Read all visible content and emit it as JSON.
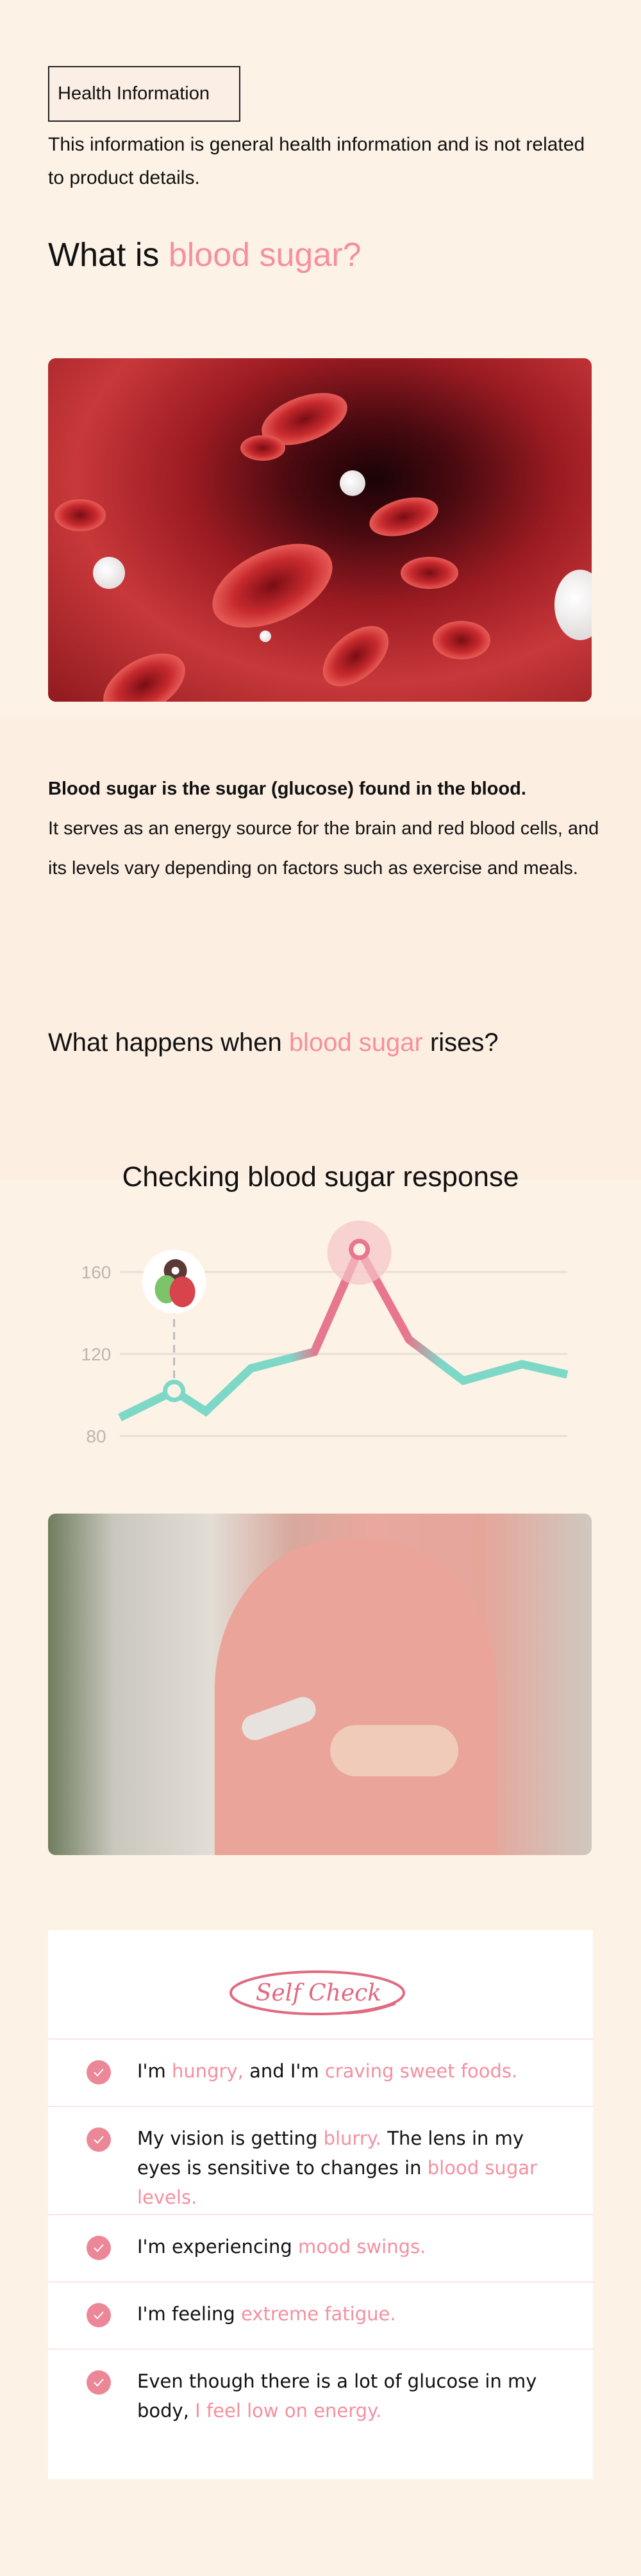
{
  "badge": "Health Information",
  "note": "This information is general health information and is not related to product details.",
  "heading1": {
    "pre": "What is ",
    "highlight": "blood sugar?"
  },
  "intro": {
    "bold": "Blood sugar is the sugar (glucose) found in the blood.",
    "body": "It serves as an energy source for the brain and red blood cells, and its levels vary depending on factors such as exercise and meals."
  },
  "heading2": {
    "pre": "What happens when ",
    "highlight": "blood sugar",
    "post": " rises?"
  },
  "colors": {
    "accent": "#f4909f",
    "teal": "#7dd8c8",
    "peak": "#e7768e",
    "background": "#fdf2e6"
  },
  "chart_data": {
    "type": "line",
    "title": "Checking blood sugar response",
    "xlabel": "",
    "ylabel": "",
    "yticks": [
      "160",
      "120",
      "80"
    ],
    "ylim": [
      80,
      175
    ],
    "x": [
      0,
      1.2,
      1.9,
      2.9,
      4.3,
      5.3,
      6.4,
      7.6,
      8.9,
      9.9
    ],
    "series": [
      {
        "name": "blood sugar",
        "values": [
          89,
          102,
          92,
          113,
          121,
          171,
          127,
          107,
          115,
          110
        ]
      }
    ],
    "annotations": [
      {
        "index": 1,
        "icon": "meal-icon",
        "label": "meal"
      },
      {
        "index": 5,
        "icon": "peak-highlight",
        "label": "peak"
      }
    ],
    "grid": true
  },
  "self_check": {
    "title": "Self Check",
    "items": [
      {
        "parts": [
          {
            "t": "I'm "
          },
          {
            "t": "hungry,",
            "h": 1
          },
          {
            "t": " and I'm "
          },
          {
            "t": "craving sweet foods.",
            "h": 1
          }
        ]
      },
      {
        "parts": [
          {
            "t": "My vision is getting "
          },
          {
            "t": "blurry.",
            "h": 1
          },
          {
            "t": " The lens in my eyes is sensitive to changes in "
          },
          {
            "t": "blood sugar levels.",
            "h": 1
          }
        ]
      },
      {
        "parts": [
          {
            "t": "I'm experiencing "
          },
          {
            "t": "mood swings.",
            "h": 1
          }
        ]
      },
      {
        "parts": [
          {
            "t": "I'm feeling "
          },
          {
            "t": "extreme fatigue.",
            "h": 1
          }
        ]
      },
      {
        "parts": [
          {
            "t": "Even though there is a lot of glucose in my body, "
          },
          {
            "t": "I feel low on energy.",
            "h": 1
          }
        ]
      }
    ]
  }
}
